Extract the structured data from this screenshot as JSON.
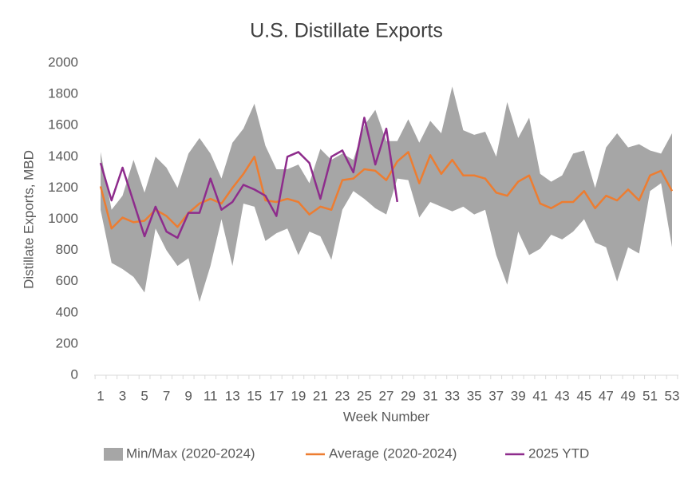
{
  "chart_data": {
    "type": "band_line",
    "title": "U.S. Distillate Exports",
    "x_label": "Week Number",
    "y_label": "Distillate Exports, MBD",
    "categories": [
      1,
      null,
      3,
      null,
      5,
      null,
      7,
      null,
      9,
      null,
      11,
      null,
      13,
      null,
      15,
      null,
      17,
      null,
      19,
      null,
      21,
      null,
      23,
      null,
      25,
      null,
      27,
      null,
      29,
      null,
      31,
      null,
      33,
      null,
      35,
      null,
      37,
      null,
      39,
      null,
      41,
      null,
      43,
      null,
      45,
      null,
      47,
      null,
      49,
      null,
      51,
      null,
      53
    ],
    "ylim": [
      0,
      2000
    ],
    "yticks": [
      0,
      200,
      400,
      600,
      800,
      1000,
      1200,
      1400,
      1600,
      1800,
      2000
    ],
    "legend": "bottom",
    "band": {
      "name": "Min/Max (2020-2024)",
      "color": "#a6a6a6",
      "max": [
        1430,
        1060,
        1150,
        1380,
        1170,
        1400,
        1330,
        1200,
        1420,
        1520,
        1420,
        1260,
        1490,
        1580,
        1740,
        1470,
        1320,
        1320,
        1350,
        1230,
        1450,
        1380,
        1420,
        1380,
        1600,
        1700,
        1500,
        1500,
        1640,
        1490,
        1630,
        1550,
        1850,
        1570,
        1540,
        1560,
        1400,
        1750,
        1520,
        1650,
        1290,
        1240,
        1280,
        1420,
        1440,
        1200,
        1460,
        1550,
        1460,
        1480,
        1440,
        1420,
        1550
      ],
      "min": [
        1060,
        720,
        680,
        630,
        530,
        940,
        800,
        700,
        750,
        470,
        700,
        1000,
        700,
        1100,
        1080,
        860,
        910,
        940,
        770,
        920,
        890,
        740,
        1060,
        1180,
        1130,
        1070,
        1030,
        1260,
        1250,
        1010,
        1110,
        1080,
        1050,
        1080,
        1030,
        1060,
        770,
        580,
        920,
        770,
        810,
        900,
        870,
        920,
        1000,
        850,
        820,
        600,
        820,
        780,
        1180,
        1230,
        820
      ]
    },
    "series": [
      {
        "name": "Average (2020-2024)",
        "color": "#ed7d31",
        "values": [
          1210,
          940,
          1010,
          980,
          990,
          1060,
          1020,
          950,
          1040,
          1100,
          1130,
          1100,
          1200,
          1290,
          1400,
          1120,
          1110,
          1130,
          1110,
          1030,
          1080,
          1060,
          1250,
          1260,
          1320,
          1310,
          1250,
          1370,
          1430,
          1230,
          1410,
          1290,
          1380,
          1280,
          1280,
          1260,
          1170,
          1150,
          1240,
          1280,
          1100,
          1070,
          1110,
          1110,
          1180,
          1070,
          1150,
          1120,
          1190,
          1120,
          1280,
          1310,
          1180
        ]
      },
      {
        "name": "2025 YTD",
        "color": "#8e2c8c",
        "values": [
          1360,
          1120,
          1330,
          1110,
          890,
          1080,
          920,
          880,
          1040,
          1040,
          1260,
          1060,
          1110,
          1220,
          1190,
          1150,
          1020,
          1400,
          1430,
          1360,
          1130,
          1400,
          1440,
          1300,
          1650,
          1350,
          1580,
          1110,
          null,
          null,
          null,
          null,
          null,
          null,
          null,
          null,
          null,
          null,
          null,
          null,
          null,
          null,
          null,
          null,
          null,
          null,
          null,
          null,
          null,
          null,
          null,
          null,
          null
        ]
      }
    ]
  }
}
